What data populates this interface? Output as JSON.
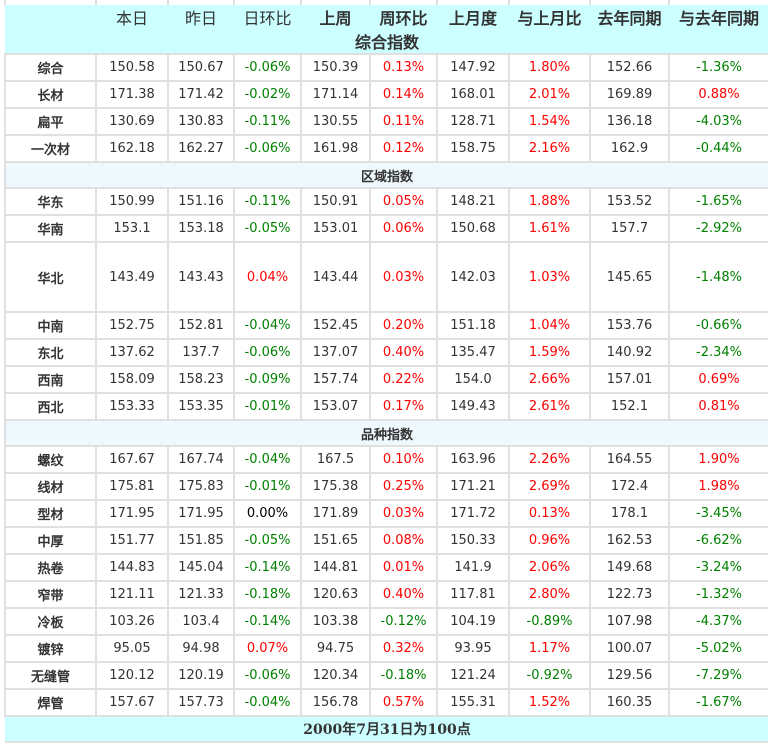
{
  "columns": [
    "",
    "本日",
    "昨日",
    "日环比",
    "上周",
    "周环比",
    "上月度",
    "与上月比",
    "去年同期",
    "与去年同期"
  ],
  "colors": {
    "up": "#ff0000",
    "down": "#008000",
    "flat": "#000000",
    "header_bg": "#ccffff",
    "section_bg": "#eef8fd"
  },
  "sections": [
    {
      "title": "综合指数",
      "rows": [
        [
          "综合",
          "150.58",
          "150.67",
          "-0.06%",
          "150.39",
          "0.13%",
          "147.92",
          "1.80%",
          "152.66",
          "-1.36%"
        ],
        [
          "长材",
          "171.38",
          "171.42",
          "-0.02%",
          "171.14",
          "0.14%",
          "168.01",
          "2.01%",
          "169.89",
          "0.88%"
        ],
        [
          "扁平",
          "130.69",
          "130.83",
          "-0.11%",
          "130.55",
          "0.11%",
          "128.71",
          "1.54%",
          "136.18",
          "-4.03%"
        ],
        [
          "一次材",
          "162.18",
          "162.27",
          "-0.06%",
          "161.98",
          "0.12%",
          "158.75",
          "2.16%",
          "162.9",
          "-0.44%"
        ]
      ]
    },
    {
      "title": "区域指数",
      "rows": [
        [
          "华东",
          "150.99",
          "151.16",
          "-0.11%",
          "150.91",
          "0.05%",
          "148.21",
          "1.88%",
          "153.52",
          "-1.65%"
        ],
        [
          "华南",
          "153.1",
          "153.18",
          "-0.05%",
          "153.01",
          "0.06%",
          "150.68",
          "1.61%",
          "157.7",
          "-2.92%"
        ],
        [
          "华北",
          "143.49",
          "143.43",
          "0.04%",
          "143.44",
          "0.03%",
          "142.03",
          "1.03%",
          "145.65",
          "-1.48%"
        ],
        [
          "中南",
          "152.75",
          "152.81",
          "-0.04%",
          "152.45",
          "0.20%",
          "151.18",
          "1.04%",
          "153.76",
          "-0.66%"
        ],
        [
          "东北",
          "137.62",
          "137.7",
          "-0.06%",
          "137.07",
          "0.40%",
          "135.47",
          "1.59%",
          "140.92",
          "-2.34%"
        ],
        [
          "西南",
          "158.09",
          "158.23",
          "-0.09%",
          "157.74",
          "0.22%",
          "154.0",
          "2.66%",
          "157.01",
          "0.69%"
        ],
        [
          "西北",
          "153.33",
          "153.35",
          "-0.01%",
          "153.07",
          "0.17%",
          "149.43",
          "2.61%",
          "152.1",
          "0.81%"
        ]
      ]
    },
    {
      "title": "品种指数",
      "rows": [
        [
          "螺纹",
          "167.67",
          "167.74",
          "-0.04%",
          "167.5",
          "0.10%",
          "163.96",
          "2.26%",
          "164.55",
          "1.90%"
        ],
        [
          "线材",
          "175.81",
          "175.83",
          "-0.01%",
          "175.38",
          "0.25%",
          "171.21",
          "2.69%",
          "172.4",
          "1.98%"
        ],
        [
          "型材",
          "171.95",
          "171.95",
          "0.00%",
          "171.89",
          "0.03%",
          "171.72",
          "0.13%",
          "178.1",
          "-3.45%"
        ],
        [
          "中厚",
          "151.77",
          "151.85",
          "-0.05%",
          "151.65",
          "0.08%",
          "150.33",
          "0.96%",
          "162.53",
          "-6.62%"
        ],
        [
          "热卷",
          "144.83",
          "145.04",
          "-0.14%",
          "144.81",
          "0.01%",
          "141.9",
          "2.06%",
          "149.68",
          "-3.24%"
        ],
        [
          "窄带",
          "121.11",
          "121.33",
          "-0.18%",
          "120.63",
          "0.40%",
          "117.81",
          "2.80%",
          "122.73",
          "-1.32%"
        ],
        [
          "冷板",
          "103.26",
          "103.4",
          "-0.14%",
          "103.38",
          "-0.12%",
          "104.19",
          "-0.89%",
          "107.98",
          "-4.37%"
        ],
        [
          "镀锌",
          "95.05",
          "94.98",
          "0.07%",
          "94.75",
          "0.32%",
          "93.95",
          "1.17%",
          "100.07",
          "-5.02%"
        ],
        [
          "无缝管",
          "120.12",
          "120.19",
          "-0.06%",
          "120.34",
          "-0.18%",
          "121.24",
          "-0.92%",
          "129.56",
          "-7.29%"
        ],
        [
          "焊管",
          "157.67",
          "157.73",
          "-0.04%",
          "156.78",
          "0.57%",
          "155.31",
          "1.52%",
          "160.35",
          "-1.67%"
        ]
      ]
    }
  ],
  "footer": "2000年7月31日为100点"
}
